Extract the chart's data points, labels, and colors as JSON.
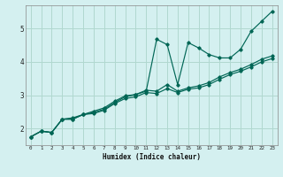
{
  "xlabel": "Humidex (Indice chaleur)",
  "bg_color": "#d4f0f0",
  "grid_color": "#b0d8d0",
  "line_color": "#006655",
  "xlim": [
    -0.5,
    23.5
  ],
  "ylim": [
    1.5,
    5.7
  ],
  "xticks": [
    0,
    1,
    2,
    3,
    4,
    5,
    6,
    7,
    8,
    9,
    10,
    11,
    12,
    13,
    14,
    15,
    16,
    17,
    18,
    19,
    20,
    21,
    22,
    23
  ],
  "yticks": [
    2,
    3,
    4,
    5
  ],
  "series": [
    [
      1.75,
      1.92,
      1.88,
      2.28,
      2.32,
      2.42,
      2.52,
      2.62,
      2.82,
      2.98,
      3.02,
      3.12,
      4.68,
      4.52,
      3.32,
      4.58,
      4.42,
      4.22,
      4.12,
      4.12,
      4.38,
      4.92,
      5.22,
      5.52
    ],
    [
      1.75,
      1.92,
      1.88,
      2.28,
      2.28,
      2.42,
      2.48,
      2.58,
      2.78,
      2.95,
      3.02,
      3.15,
      3.12,
      3.32,
      3.12,
      3.22,
      3.28,
      3.38,
      3.55,
      3.68,
      3.78,
      3.92,
      4.08,
      4.18
    ],
    [
      1.75,
      1.92,
      1.88,
      2.28,
      2.28,
      2.42,
      2.45,
      2.55,
      2.75,
      2.9,
      2.95,
      3.08,
      3.05,
      3.2,
      3.08,
      3.18,
      3.22,
      3.32,
      3.48,
      3.62,
      3.72,
      3.85,
      4.0,
      4.1
    ]
  ]
}
